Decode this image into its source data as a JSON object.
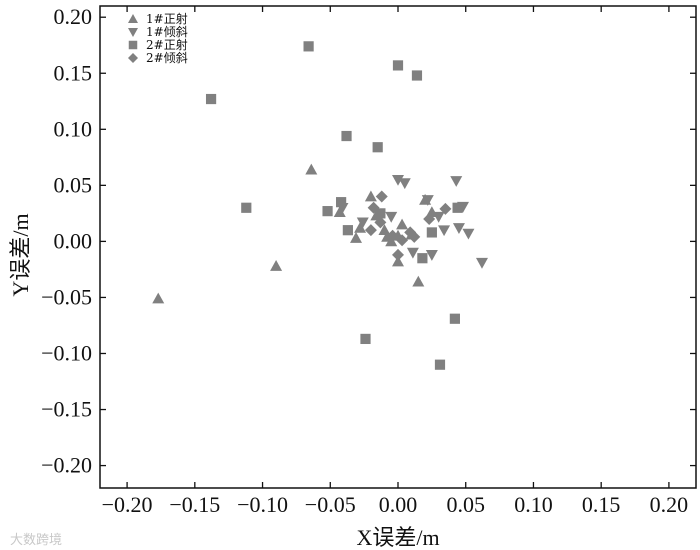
{
  "chart_data": {
    "type": "scatter",
    "title": "",
    "xlabel": "X误差/m",
    "ylabel": "Y误差/m",
    "xlim": [
      -0.22,
      0.22
    ],
    "ylim": [
      -0.22,
      0.21
    ],
    "xticks": [
      -0.2,
      -0.15,
      -0.1,
      -0.05,
      0.0,
      0.05,
      0.1,
      0.15,
      0.2
    ],
    "yticks": [
      -0.2,
      -0.15,
      -0.1,
      -0.05,
      0.0,
      0.05,
      0.1,
      0.15,
      0.2
    ],
    "xtick_labels": [
      "−0.20",
      "−0.15",
      "−0.10",
      "−0.05",
      "0.00",
      "0.05",
      "0.10",
      "0.15",
      "0.20"
    ],
    "ytick_labels": [
      "−0.20",
      "−0.15",
      "−0.10",
      "−0.05",
      "0.00",
      "0.05",
      "0.10",
      "0.15",
      "0.20"
    ],
    "grid": false,
    "legend_position": "top-left",
    "marker_color": "#808080",
    "series": [
      {
        "name": "1#正射",
        "marker": "triangle-up",
        "points": [
          [
            -0.177,
            -0.051
          ],
          [
            -0.09,
            -0.022
          ],
          [
            -0.064,
            0.064
          ],
          [
            -0.043,
            0.026
          ],
          [
            -0.031,
            0.003
          ],
          [
            -0.028,
            0.012
          ],
          [
            -0.02,
            0.04
          ],
          [
            -0.016,
            0.023
          ],
          [
            -0.01,
            0.01
          ],
          [
            -0.008,
            0.004
          ],
          [
            0.0,
            0.005
          ],
          [
            0.0,
            -0.018
          ],
          [
            0.003,
            0.015
          ],
          [
            0.015,
            -0.036
          ],
          [
            0.02,
            0.037
          ],
          [
            0.025,
            0.026
          ],
          [
            -0.005,
            0.0
          ],
          [
            0.01,
            0.006
          ]
        ]
      },
      {
        "name": "1#倾斜",
        "marker": "triangle-down",
        "points": [
          [
            0.0,
            0.055
          ],
          [
            0.005,
            0.052
          ],
          [
            0.043,
            0.054
          ],
          [
            0.022,
            0.037
          ],
          [
            -0.041,
            0.03
          ],
          [
            -0.026,
            0.017
          ],
          [
            0.048,
            0.031
          ],
          [
            0.034,
            0.01
          ],
          [
            0.045,
            0.012
          ],
          [
            0.025,
            -0.012
          ],
          [
            0.052,
            0.007
          ],
          [
            0.062,
            -0.019
          ],
          [
            0.011,
            -0.01
          ],
          [
            -0.005,
            0.022
          ],
          [
            0.03,
            0.022
          ]
        ]
      },
      {
        "name": "2#正射",
        "marker": "square",
        "points": [
          [
            -0.066,
            0.174
          ],
          [
            0.0,
            0.157
          ],
          [
            0.014,
            0.148
          ],
          [
            -0.138,
            0.127
          ],
          [
            -0.038,
            0.094
          ],
          [
            -0.015,
            0.084
          ],
          [
            -0.112,
            0.03
          ],
          [
            -0.052,
            0.027
          ],
          [
            -0.042,
            0.035
          ],
          [
            -0.037,
            0.01
          ],
          [
            -0.013,
            0.025
          ],
          [
            0.044,
            0.03
          ],
          [
            0.042,
            -0.069
          ],
          [
            0.031,
            -0.11
          ],
          [
            -0.024,
            -0.087
          ],
          [
            0.018,
            -0.015
          ],
          [
            0.025,
            0.008
          ]
        ]
      },
      {
        "name": "2#倾斜",
        "marker": "diamond",
        "points": [
          [
            -0.012,
            0.04
          ],
          [
            -0.018,
            0.03
          ],
          [
            -0.013,
            0.017
          ],
          [
            -0.004,
            0.005
          ],
          [
            0.0,
            -0.012
          ],
          [
            0.009,
            0.008
          ],
          [
            0.023,
            0.02
          ],
          [
            0.012,
            0.004
          ],
          [
            0.035,
            0.029
          ],
          [
            -0.02,
            0.01
          ],
          [
            0.003,
            0.001
          ]
        ]
      }
    ]
  },
  "watermark": "大数跨境"
}
